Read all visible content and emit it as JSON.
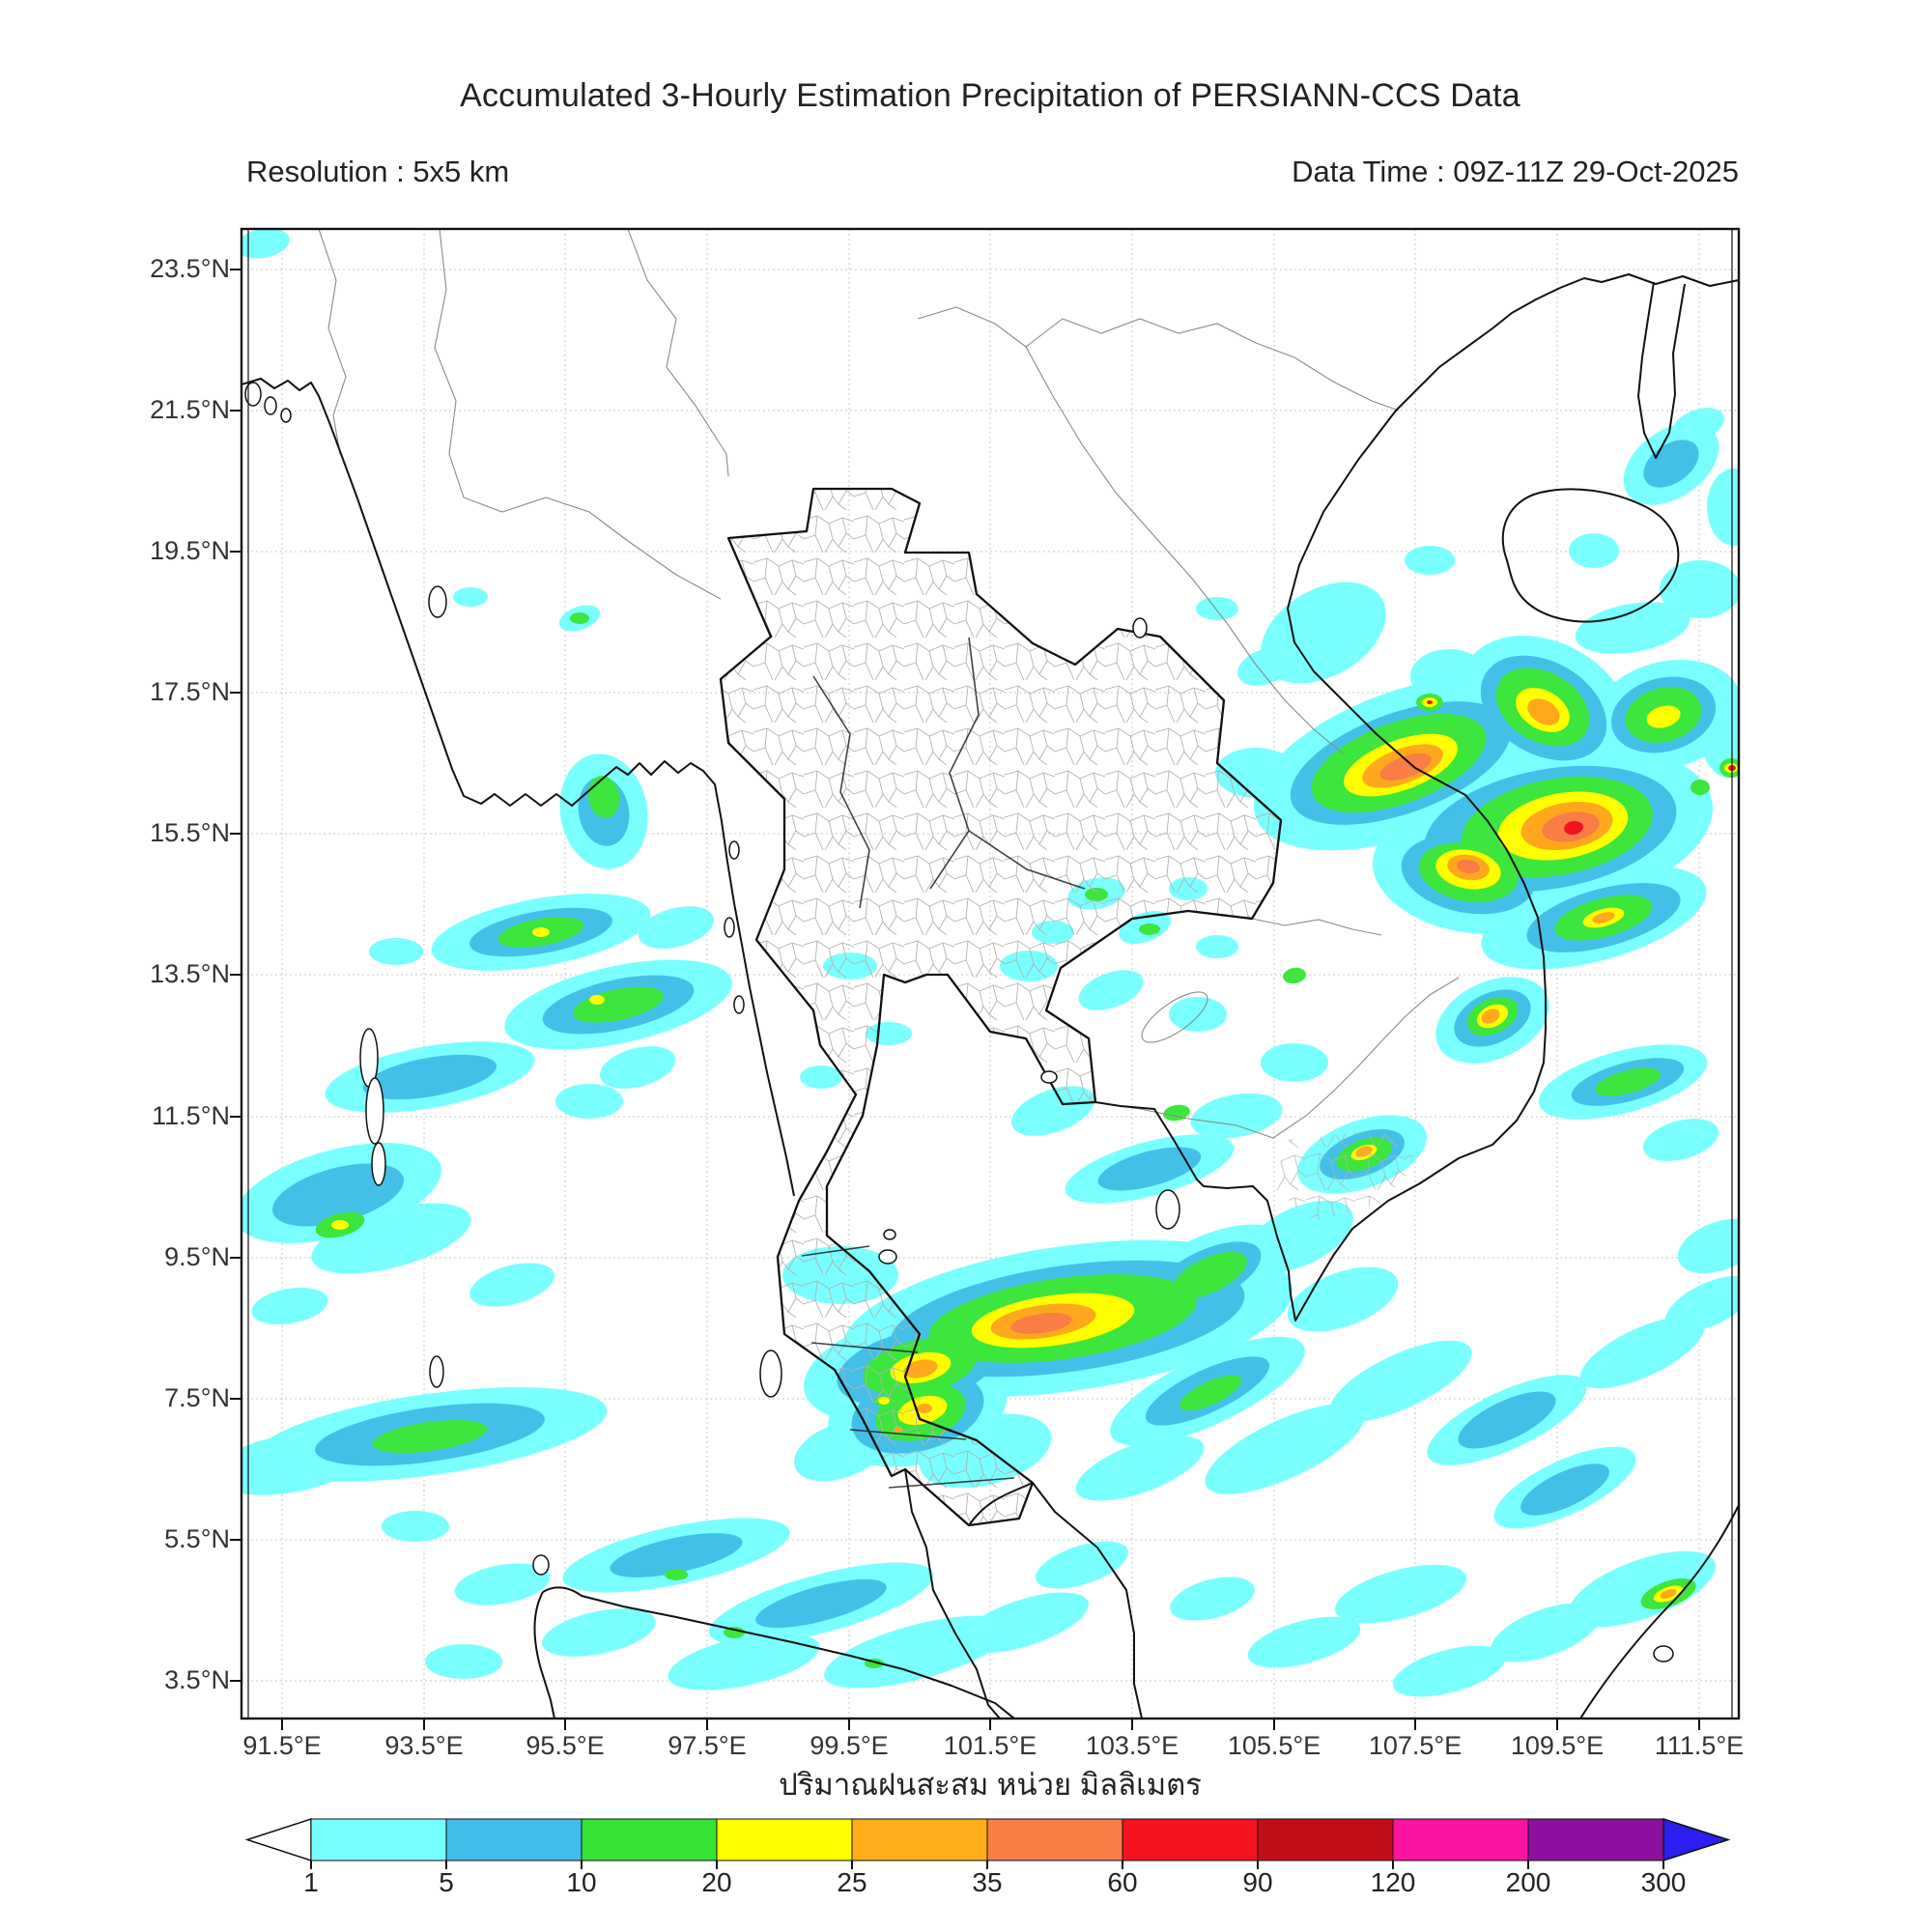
{
  "title": "Accumulated 3-Hourly Estimation Precipitation of PERSIANN-CCS Data",
  "subtitle_left": "Resolution : 5x5 km",
  "subtitle_right": "Data Time : 09Z-11Z 29-Oct-2025",
  "map": {
    "x_tick_labels": [
      "91.5°E",
      "93.5°E",
      "95.5°E",
      "97.5°E",
      "99.5°E",
      "101.5°E",
      "103.5°E",
      "105.5°E",
      "107.5°E",
      "109.5°E",
      "111.5°E"
    ],
    "y_tick_labels": [
      "23.5°N",
      "21.5°N",
      "19.5°N",
      "17.5°N",
      "15.5°N",
      "13.5°N",
      "11.5°N",
      "9.5°N",
      "7.5°N",
      "5.5°N",
      "3.5°N"
    ],
    "lon_range": "91.5E - 111.5E",
    "lat_range": "3.5N - 23.5N",
    "grid": "on, dotted gray every 2 degrees"
  },
  "colorbar": {
    "label_thai": "ปริมาณฝนสะสม หน่วย มิลลิเมตร",
    "tick_labels": [
      "1",
      "5",
      "10",
      "20",
      "25",
      "35",
      "60",
      "90",
      "120",
      "200",
      "300"
    ],
    "under_color": "#FFFFFF",
    "over_color": "#2A1EF0",
    "segments": [
      {
        "from": "1",
        "to": "5",
        "color": "#76FFFF"
      },
      {
        "from": "5",
        "to": "10",
        "color": "#41BEE8"
      },
      {
        "from": "10",
        "to": "20",
        "color": "#35E335"
      },
      {
        "from": "20",
        "to": "25",
        "color": "#FFFF00"
      },
      {
        "from": "25",
        "to": "35",
        "color": "#FFAE19"
      },
      {
        "from": "35",
        "to": "60",
        "color": "#F97D46"
      },
      {
        "from": "60",
        "to": "90",
        "color": "#F5121E"
      },
      {
        "from": "90",
        "to": "120",
        "color": "#C30D18"
      },
      {
        "from": "120",
        "to": "200",
        "color": "#FA14A0"
      },
      {
        "from": "200",
        "to": "300",
        "color": "#8E0F9E"
      }
    ],
    "units": "mm"
  },
  "precipitation_systems": [
    {
      "region": "Central Vietnam coast / South China Sea",
      "approx_center": "108-110E 14-17N",
      "peak_range_mm": "60-90"
    },
    {
      "region": "Gulf of Thailand band",
      "approx_center": "101-103E 8N",
      "peak_range_mm": "35-60"
    },
    {
      "region": "Southern Thailand (Songkhla/Pattani)",
      "approx_center": "100.5E 7N",
      "peak_range_mm": "25-35"
    },
    {
      "region": "Andaman Sea rain streaks",
      "approx_center": "93-99E 5-13N",
      "peak_range_mm": "10-25"
    },
    {
      "region": "Hainan / Gulf of Tonkin patches",
      "approx_center": "109-111E 17-19N",
      "peak_range_mm": "10-20"
    },
    {
      "region": "Mekong Delta coast",
      "approx_center": "106.5E 10N",
      "peak_range_mm": "25-35"
    },
    {
      "region": "Sumatra / Malacca Strait streaks",
      "approx_center": "96-101E 3-5N",
      "peak_range_mm": "10-20"
    }
  ],
  "palette": {
    "cyan": "#79FFFF",
    "blue": "#44C0E8",
    "green": "#3CE63C",
    "yellow": "#FFFF00",
    "orange": "#FFA81E",
    "salmon": "#F97D46",
    "red": "#F0141E"
  },
  "precip_blobs": {
    "cyan": [
      [
        1455,
        790,
        165,
        75,
        -20
      ],
      [
        1600,
        860,
        175,
        85,
        -10
      ],
      [
        1600,
        735,
        95,
        70,
        30
      ],
      [
        1725,
        740,
        80,
        55,
        -15
      ],
      [
        1520,
        905,
        100,
        60,
        10
      ],
      [
        1650,
        950,
        120,
        45,
        -15
      ],
      [
        1545,
        1056,
        62,
        40,
        -25
      ],
      [
        1410,
        1195,
        70,
        35,
        -20
      ],
      [
        1370,
        655,
        70,
        45,
        -30
      ],
      [
        1300,
        800,
        42,
        26,
        0
      ],
      [
        1500,
        700,
        40,
        28,
        0
      ],
      [
        1690,
        650,
        60,
        25,
        -10
      ],
      [
        1760,
        610,
        42,
        30,
        0
      ],
      [
        1730,
        480,
        55,
        35,
        -35
      ],
      [
        1795,
        525,
        28,
        40,
        0
      ],
      [
        1650,
        570,
        26,
        18,
        0
      ],
      [
        1790,
        760,
        30,
        45,
        0
      ],
      [
        1758,
        440,
        28,
        16,
        -20
      ],
      [
        1480,
        580,
        26,
        15,
        0
      ],
      [
        1105,
        1365,
        235,
        75,
        -8
      ],
      [
        950,
        1415,
        120,
        55,
        -12
      ],
      [
        1250,
        1320,
        90,
        40,
        -25
      ],
      [
        1345,
        1280,
        60,
        30,
        -25
      ],
      [
        1390,
        1345,
        60,
        28,
        -20
      ],
      [
        870,
        1320,
        60,
        30,
        0
      ],
      [
        1190,
        1210,
        90,
        28,
        -15
      ],
      [
        1090,
        1150,
        45,
        22,
        -20
      ],
      [
        1280,
        1155,
        48,
        22,
        -10
      ],
      [
        1340,
        1100,
        35,
        20,
        0
      ],
      [
        1240,
        1050,
        30,
        18,
        0
      ],
      [
        1150,
        1025,
        35,
        18,
        -20
      ],
      [
        1065,
        1000,
        30,
        16,
        0
      ],
      [
        1135,
        925,
        30,
        16,
        -10
      ],
      [
        1185,
        960,
        28,
        15,
        -20
      ],
      [
        1090,
        965,
        22,
        12,
        0
      ],
      [
        1230,
        920,
        20,
        12,
        0
      ],
      [
        1260,
        980,
        22,
        12,
        0
      ],
      [
        950,
        1460,
        95,
        55,
        -15
      ],
      [
        1020,
        1502,
        70,
        35,
        -15
      ],
      [
        870,
        1502,
        50,
        28,
        -20
      ],
      [
        640,
        1040,
        120,
        40,
        -12
      ],
      [
        560,
        965,
        115,
        35,
        -10
      ],
      [
        445,
        1115,
        110,
        32,
        -10
      ],
      [
        350,
        1235,
        110,
        45,
        -15
      ],
      [
        405,
        1282,
        85,
        30,
        -15
      ],
      [
        625,
        840,
        45,
        60,
        -10
      ],
      [
        600,
        640,
        22,
        12,
        -20
      ],
      [
        487,
        618,
        18,
        10,
        0
      ],
      [
        660,
        1105,
        40,
        20,
        -15
      ],
      [
        700,
        960,
        40,
        20,
        -15
      ],
      [
        610,
        1140,
        35,
        18,
        0
      ],
      [
        530,
        1330,
        45,
        20,
        -15
      ],
      [
        300,
        1352,
        40,
        18,
        -10
      ],
      [
        410,
        985,
        28,
        14,
        0
      ],
      [
        445,
        1485,
        185,
        42,
        -8
      ],
      [
        300,
        1515,
        80,
        30,
        -10
      ],
      [
        700,
        1610,
        120,
        30,
        -12
      ],
      [
        850,
        1660,
        120,
        30,
        -15
      ],
      [
        950,
        1710,
        100,
        28,
        -15
      ],
      [
        770,
        1720,
        80,
        25,
        -12
      ],
      [
        620,
        1690,
        60,
        22,
        -12
      ],
      [
        520,
        1640,
        50,
        20,
        -10
      ],
      [
        1060,
        1680,
        70,
        24,
        -18
      ],
      [
        1120,
        1620,
        50,
        20,
        -18
      ],
      [
        480,
        1720,
        40,
        18,
        0
      ],
      [
        430,
        1580,
        35,
        16,
        0
      ],
      [
        1250,
        1440,
        110,
        35,
        -25
      ],
      [
        1330,
        1500,
        90,
        30,
        -25
      ],
      [
        1180,
        1520,
        70,
        25,
        -20
      ],
      [
        1450,
        1430,
        80,
        28,
        -25
      ],
      [
        1560,
        1470,
        90,
        30,
        -25
      ],
      [
        1620,
        1540,
        80,
        28,
        -25
      ],
      [
        1700,
        1400,
        70,
        25,
        -25
      ],
      [
        1770,
        1350,
        50,
        22,
        -25
      ],
      [
        1700,
        1645,
        80,
        30,
        -20
      ],
      [
        1600,
        1690,
        60,
        24,
        -20
      ],
      [
        1450,
        1650,
        70,
        25,
        -15
      ],
      [
        1350,
        1700,
        60,
        22,
        -15
      ],
      [
        1500,
        1730,
        60,
        22,
        -15
      ],
      [
        1255,
        1655,
        45,
        20,
        -15
      ],
      [
        1680,
        1120,
        90,
        32,
        -15
      ],
      [
        1780,
        1290,
        45,
        25,
        -20
      ],
      [
        1740,
        1180,
        40,
        20,
        -15
      ],
      [
        880,
        1000,
        28,
        14,
        0
      ],
      [
        920,
        1070,
        24,
        12,
        0
      ],
      [
        850,
        1115,
        22,
        12,
        0
      ],
      [
        272,
        252,
        28,
        15,
        -10
      ],
      [
        1310,
        690,
        30,
        18,
        -20
      ],
      [
        1260,
        630,
        22,
        12,
        0
      ]
    ],
    "blue": [
      [
        1450,
        790,
        120,
        52,
        -20
      ],
      [
        1605,
        858,
        132,
        62,
        -10
      ],
      [
        1598,
        733,
        70,
        48,
        30
      ],
      [
        1722,
        740,
        55,
        38,
        -15
      ],
      [
        1520,
        905,
        70,
        40,
        10
      ],
      [
        1545,
        1054,
        42,
        26,
        -25
      ],
      [
        1660,
        950,
        82,
        30,
        -15
      ],
      [
        1410,
        1195,
        46,
        22,
        -20
      ],
      [
        1730,
        480,
        32,
        20,
        -35
      ],
      [
        1105,
        1365,
        185,
        55,
        -8
      ],
      [
        950,
        1415,
        85,
        38,
        -12
      ],
      [
        1250,
        1320,
        60,
        26,
        -25
      ],
      [
        1190,
        1210,
        55,
        18,
        -15
      ],
      [
        950,
        1462,
        70,
        40,
        -15
      ],
      [
        640,
        1040,
        80,
        26,
        -12
      ],
      [
        560,
        965,
        75,
        22,
        -10
      ],
      [
        445,
        1115,
        70,
        20,
        -10
      ],
      [
        350,
        1237,
        70,
        28,
        -15
      ],
      [
        445,
        1485,
        120,
        28,
        -8
      ],
      [
        625,
        840,
        26,
        36,
        -10
      ],
      [
        1250,
        1440,
        70,
        22,
        -25
      ],
      [
        1560,
        1470,
        55,
        20,
        -25
      ],
      [
        1620,
        1542,
        50,
        18,
        -25
      ],
      [
        1685,
        1120,
        60,
        20,
        -15
      ],
      [
        850,
        1660,
        70,
        18,
        -15
      ],
      [
        700,
        1610,
        70,
        18,
        -12
      ]
    ],
    "green": [
      [
        1448,
        790,
        95,
        42,
        -20
      ],
      [
        1612,
        856,
        100,
        50,
        -10
      ],
      [
        1597,
        732,
        52,
        36,
        30
      ],
      [
        1722,
        740,
        40,
        28,
        -15
      ],
      [
        1520,
        903,
        52,
        30,
        10
      ],
      [
        1545,
        1052,
        28,
        18,
        -25
      ],
      [
        1660,
        950,
        52,
        20,
        -15
      ],
      [
        1412,
        1195,
        30,
        15,
        -20
      ],
      [
        1100,
        1365,
        140,
        42,
        -8
      ],
      [
        952,
        1415,
        60,
        28,
        -12
      ],
      [
        1252,
        1320,
        42,
        18,
        -25
      ],
      [
        953,
        1462,
        48,
        28,
        -15
      ],
      [
        640,
        1040,
        48,
        16,
        -12
      ],
      [
        560,
        965,
        45,
        14,
        -10
      ],
      [
        445,
        1487,
        60,
        15,
        -8
      ],
      [
        352,
        1268,
        26,
        12,
        -15
      ],
      [
        625,
        825,
        16,
        22,
        -10
      ],
      [
        1253,
        1442,
        35,
        12,
        -25
      ],
      [
        1727,
        1650,
        30,
        13,
        -20
      ],
      [
        1685,
        1120,
        35,
        12,
        -15
      ],
      [
        600,
        640,
        10,
        6,
        0
      ],
      [
        1135,
        926,
        12,
        7,
        0
      ],
      [
        1190,
        962,
        11,
        6,
        0
      ],
      [
        915,
        1450,
        10,
        6,
        0
      ],
      [
        700,
        1630,
        12,
        6,
        0
      ],
      [
        760,
        1690,
        11,
        6,
        0
      ],
      [
        905,
        1722,
        10,
        5,
        0
      ],
      [
        1480,
        727,
        14,
        9,
        0
      ],
      [
        1792,
        795,
        12,
        10,
        0
      ],
      [
        1760,
        815,
        10,
        8,
        0
      ],
      [
        1340,
        1010,
        12,
        8,
        -10
      ],
      [
        1218,
        1152,
        14,
        8,
        -10
      ]
    ],
    "yellow": [
      [
        1450,
        792,
        62,
        26,
        -20
      ],
      [
        1618,
        855,
        68,
        34,
        -10
      ],
      [
        1597,
        735,
        30,
        20,
        30
      ],
      [
        1520,
        900,
        34,
        20,
        10
      ],
      [
        1722,
        742,
        18,
        11,
        -15
      ],
      [
        1660,
        950,
        22,
        9,
        -15
      ],
      [
        1090,
        1367,
        85,
        26,
        -8
      ],
      [
        953,
        1416,
        32,
        15,
        -12
      ],
      [
        955,
        1460,
        26,
        14,
        -15
      ],
      [
        1545,
        1052,
        17,
        11,
        -25
      ],
      [
        1412,
        1193,
        14,
        7,
        -20
      ],
      [
        1727,
        1650,
        16,
        7,
        -20
      ],
      [
        618,
        1035,
        8,
        5,
        0
      ],
      [
        560,
        965,
        9,
        5,
        0
      ],
      [
        352,
        1268,
        9,
        5,
        0
      ],
      [
        1480,
        727,
        8,
        5,
        0
      ],
      [
        915,
        1450,
        6,
        4,
        0
      ],
      [
        1792,
        795,
        7,
        5,
        0
      ]
    ],
    "orange": [
      [
        1452,
        793,
        44,
        18,
        -20
      ],
      [
        1622,
        855,
        48,
        24,
        -10
      ],
      [
        1598,
        737,
        18,
        12,
        30
      ],
      [
        1520,
        898,
        22,
        13,
        10
      ],
      [
        1080,
        1368,
        55,
        17,
        -8
      ],
      [
        953,
        1417,
        18,
        9,
        -12
      ],
      [
        1543,
        1052,
        10,
        7,
        -25
      ],
      [
        1412,
        1192,
        9,
        5,
        -20
      ],
      [
        1727,
        1650,
        9,
        4,
        -20
      ],
      [
        1660,
        950,
        12,
        5,
        -15
      ],
      [
        957,
        1458,
        8,
        5,
        0
      ],
      [
        930,
        1480,
        5,
        3,
        0
      ]
    ],
    "salmon": [
      [
        1455,
        794,
        28,
        11,
        -20
      ],
      [
        1626,
        856,
        30,
        15,
        -10
      ],
      [
        1078,
        1370,
        32,
        10,
        -8
      ],
      [
        1520,
        897,
        12,
        7,
        10
      ]
    ],
    "red": [
      [
        1629,
        857,
        10,
        7,
        -10
      ],
      [
        1480,
        727,
        3,
        2,
        0
      ],
      [
        1793,
        795,
        4,
        3,
        0
      ]
    ]
  }
}
